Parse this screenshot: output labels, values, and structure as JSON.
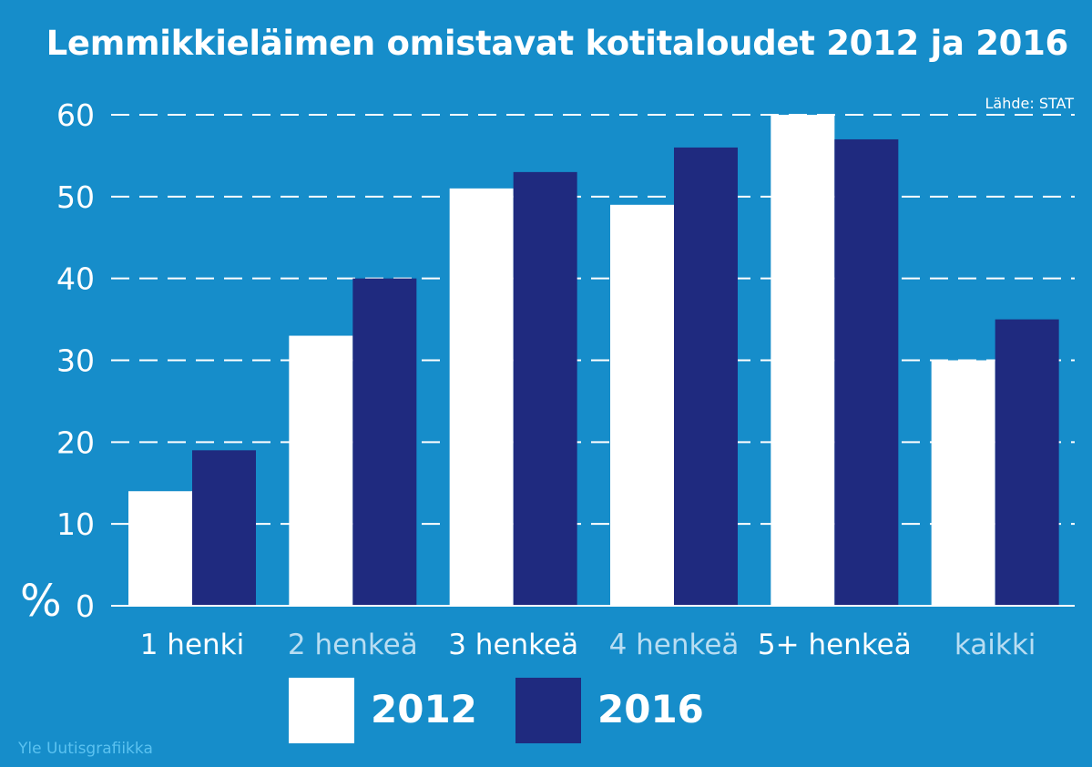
{
  "title": "Lemmikkieläimen omistavat kotitaloudet 2012 ja 2016",
  "source": "Lähde: STAT",
  "credit": "Yle Uutisgrafiikka",
  "colors": {
    "background": "#168dca",
    "series_2012": "#ffffff",
    "series_2016": "#1f2a7f",
    "grid": "#ffffff",
    "label_alt": "#b8ddf2"
  },
  "chart_data": {
    "type": "bar",
    "title": "Lemmikkieläimen omistavat kotitaloudet 2012 ja 2016",
    "ylabel": "%",
    "xlabel": "",
    "ylim": [
      0,
      60
    ],
    "yticks": [
      0,
      10,
      20,
      30,
      40,
      50,
      60
    ],
    "grid": true,
    "categories": [
      "1 henki",
      "2 henkeä",
      "3 henkeä",
      "4 henkeä",
      "5+ henkeä",
      "kaikki"
    ],
    "series": [
      {
        "name": "2012",
        "color": "#ffffff",
        "values": [
          14,
          33,
          51,
          49,
          60,
          30
        ]
      },
      {
        "name": "2016",
        "color": "#1f2a7f",
        "values": [
          19,
          40,
          53,
          56,
          57,
          35
        ]
      }
    ],
    "legend_position": "bottom"
  }
}
